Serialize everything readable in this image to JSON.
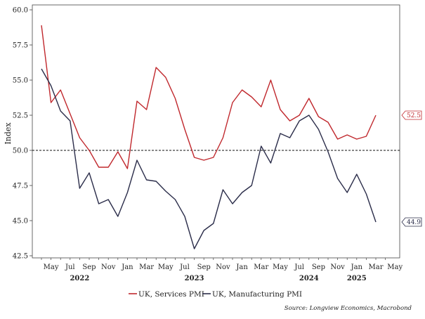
{
  "chart_data": {
    "type": "line",
    "ylabel": "Index",
    "ylim": [
      42.5,
      60.0
    ],
    "yticks": [
      "42.5",
      "45.0",
      "47.5",
      "50.0",
      "52.5",
      "55.0",
      "57.5",
      "60.0"
    ],
    "reference_line": 50.0,
    "x": [
      "2022-04",
      "2022-05",
      "2022-06",
      "2022-07",
      "2022-08",
      "2022-09",
      "2022-10",
      "2022-11",
      "2022-12",
      "2023-01",
      "2023-02",
      "2023-03",
      "2023-04",
      "2023-05",
      "2023-06",
      "2023-07",
      "2023-08",
      "2023-09",
      "2023-10",
      "2023-11",
      "2023-12",
      "2024-01",
      "2024-02",
      "2024-03",
      "2024-04",
      "2024-05",
      "2024-06",
      "2024-07",
      "2024-08",
      "2024-09",
      "2024-10",
      "2024-11",
      "2024-12",
      "2025-01",
      "2025-02",
      "2025-03"
    ],
    "xtick_labels": [
      "May",
      "Jul",
      "Sep",
      "Nov",
      "Jan",
      "Mar",
      "May",
      "Jul",
      "Sep",
      "Nov",
      "Jan",
      "Mar",
      "May",
      "Jul",
      "Sep",
      "Nov",
      "Jan",
      "Mar",
      "May"
    ],
    "year_labels": [
      "2022",
      "2023",
      "2024",
      "2025"
    ],
    "series": [
      {
        "name": "UK, Services PMI",
        "color": "#c0282d",
        "end_label": "52.5",
        "values": [
          58.9,
          53.4,
          54.3,
          52.6,
          50.9,
          50.0,
          48.8,
          48.8,
          49.9,
          48.7,
          53.5,
          52.9,
          55.9,
          55.2,
          53.7,
          51.5,
          49.5,
          49.3,
          49.5,
          50.9,
          53.4,
          54.3,
          53.8,
          53.1,
          55.0,
          52.9,
          52.1,
          52.5,
          53.7,
          52.4,
          52.0,
          50.8,
          51.1,
          50.8,
          51.0,
          52.5
        ]
      },
      {
        "name": "UK, Manufacturing PMI",
        "color": "#2b2d4a",
        "end_label": "44.9",
        "values": [
          55.8,
          54.6,
          52.8,
          52.1,
          47.3,
          48.4,
          46.2,
          46.5,
          45.3,
          47.0,
          49.3,
          47.9,
          47.8,
          47.1,
          46.5,
          45.3,
          43.0,
          44.3,
          44.8,
          47.2,
          46.2,
          47.0,
          47.5,
          50.3,
          49.1,
          51.2,
          50.9,
          52.1,
          52.5,
          51.5,
          49.9,
          48.0,
          47.0,
          48.3,
          46.9,
          44.9
        ]
      }
    ],
    "source": "Source: Longview Economics, Macrobond"
  }
}
